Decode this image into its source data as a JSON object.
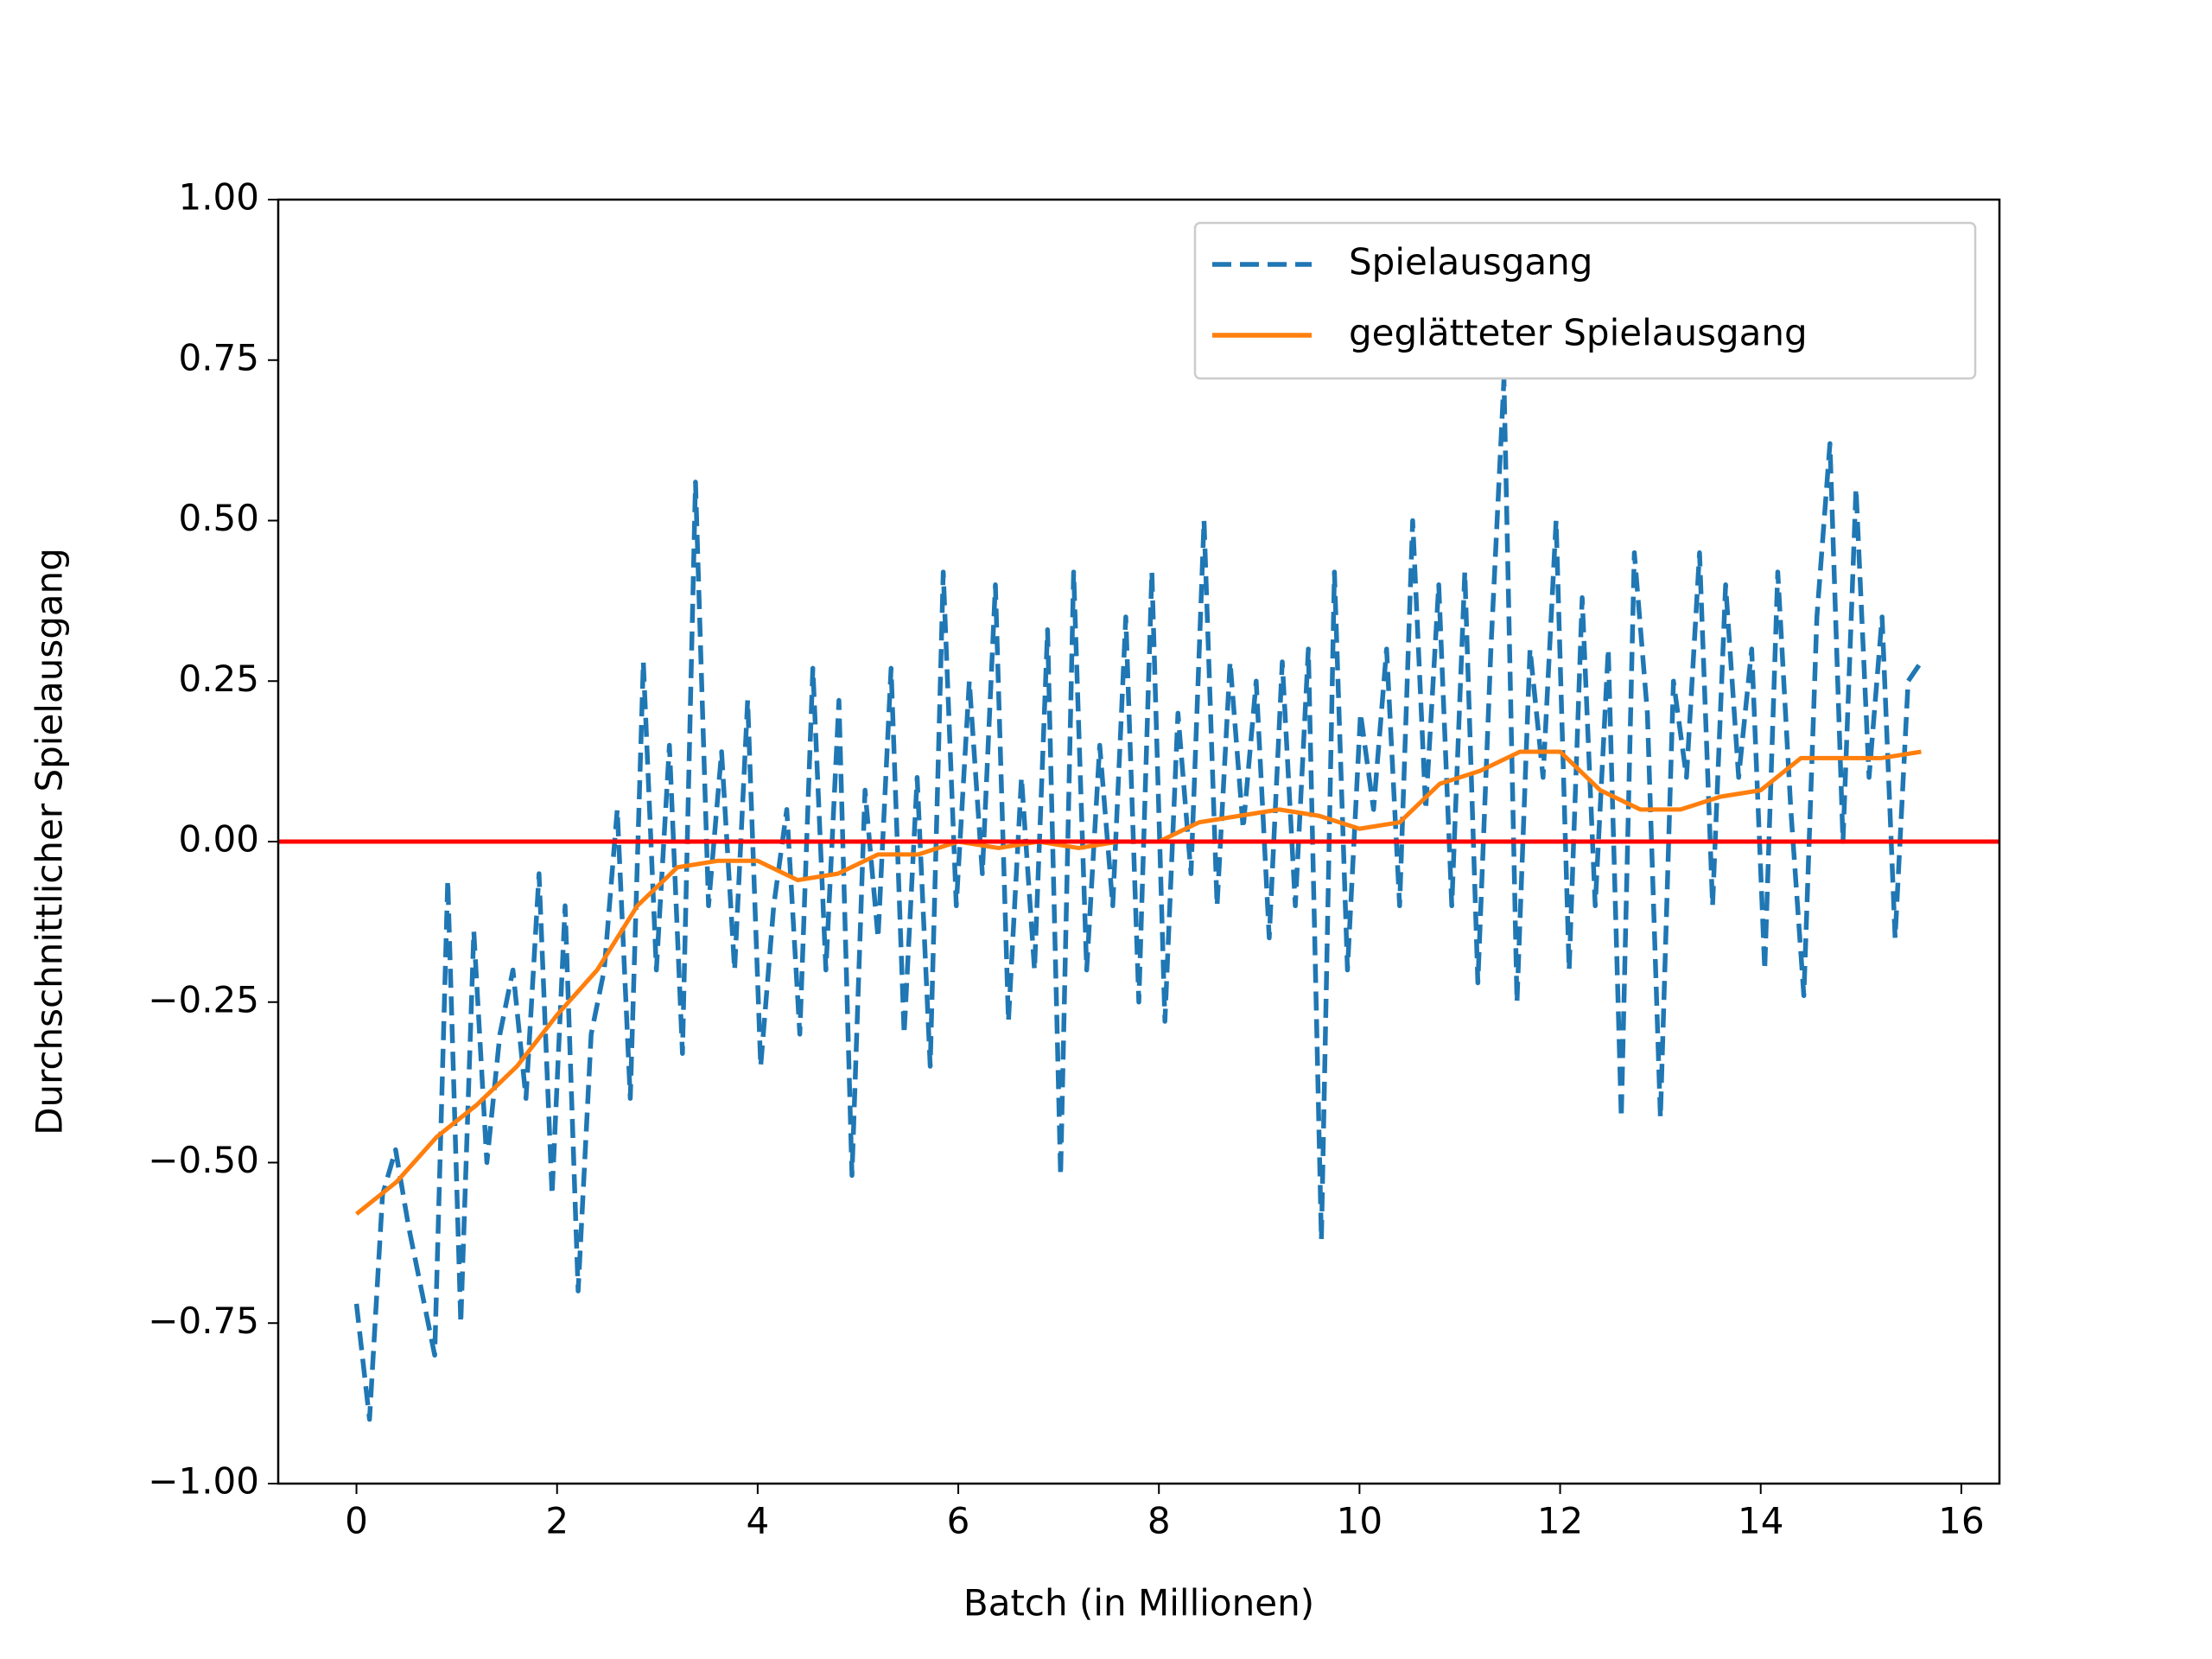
{
  "chart_data": {
    "type": "line",
    "xlabel": "Batch (in Millionen)",
    "ylabel": "Durchschnittlicher Spielausgang",
    "xlim": [
      -0.78,
      16.38
    ],
    "ylim": [
      -1,
      1
    ],
    "xticks": [
      0,
      2,
      4,
      6,
      8,
      10,
      12,
      14,
      16
    ],
    "yticks": [
      {
        "value": 1,
        "label": "1.00"
      },
      {
        "value": 0.75,
        "label": "0.75"
      },
      {
        "value": 0.5,
        "label": "0.50"
      },
      {
        "value": 0.25,
        "label": "0.25"
      },
      {
        "value": 0,
        "label": "0.00"
      },
      {
        "value": -0.25,
        "label": "−0.25"
      },
      {
        "value": -0.5,
        "label": "−0.50"
      },
      {
        "value": -0.75,
        "label": "−0.75"
      },
      {
        "value": -1,
        "label": "−1.00"
      }
    ],
    "hline": {
      "value": 0,
      "color": "#ff0000"
    },
    "legend": "upper right",
    "series": [
      {
        "name": "Spielausgang",
        "color": "#1f77b4",
        "dashed": true,
        "x": [
          0,
          0.13,
          0.26,
          0.39,
          0.52,
          0.65,
          0.78,
          0.91,
          1.04,
          1.17,
          1.3,
          1.43,
          1.56,
          1.69,
          1.82,
          1.95,
          2.08,
          2.21,
          2.34,
          2.47,
          2.6,
          2.73,
          2.86,
          2.99,
          3.12,
          3.25,
          3.38,
          3.51,
          3.64,
          3.77,
          3.9,
          4.03,
          4.16,
          4.29,
          4.42,
          4.55,
          4.68,
          4.81,
          4.94,
          5.07,
          5.2,
          5.33,
          5.46,
          5.59,
          5.72,
          5.85,
          5.98,
          6.11,
          6.24,
          6.37,
          6.5,
          6.63,
          6.76,
          6.89,
          7.02,
          7.15,
          7.28,
          7.41,
          7.54,
          7.67,
          7.8,
          7.93,
          8.06,
          8.19,
          8.32,
          8.45,
          8.58,
          8.71,
          8.84,
          8.97,
          9.1,
          9.23,
          9.36,
          9.49,
          9.62,
          9.75,
          9.88,
          10.01,
          10.14,
          10.27,
          10.4,
          10.53,
          10.66,
          10.79,
          10.92,
          11.05,
          11.18,
          11.31,
          11.44,
          11.57,
          11.7,
          11.83,
          11.96,
          12.09,
          12.22,
          12.35,
          12.48,
          12.61,
          12.74,
          12.87,
          13,
          13.13,
          13.26,
          13.39,
          13.52,
          13.65,
          13.78,
          13.91,
          14.04,
          14.17,
          14.3,
          14.43,
          14.56,
          14.69,
          14.82,
          14.95,
          15.08,
          15.21,
          15.34,
          15.47,
          15.6
        ],
        "values": [
          -0.72,
          -0.9,
          -0.55,
          -0.48,
          -0.6,
          -0.7,
          -0.8,
          -0.06,
          -0.75,
          -0.14,
          -0.5,
          -0.3,
          -0.2,
          -0.4,
          -0.05,
          -0.55,
          -0.1,
          -0.7,
          -0.3,
          -0.2,
          0.05,
          -0.4,
          0.28,
          -0.2,
          0.15,
          -0.33,
          0.56,
          -0.1,
          0.14,
          -0.2,
          0.22,
          -0.35,
          -0.1,
          0.05,
          -0.3,
          0.27,
          -0.2,
          0.22,
          -0.52,
          0.08,
          -0.15,
          0.27,
          -0.3,
          0.1,
          -0.35,
          0.42,
          -0.1,
          0.25,
          -0.05,
          0.4,
          -0.28,
          0.1,
          -0.2,
          0.33,
          -0.52,
          0.42,
          -0.2,
          0.15,
          -0.1,
          0.35,
          -0.25,
          0.42,
          -0.28,
          0.2,
          -0.05,
          0.5,
          -0.1,
          0.28,
          0.02,
          0.25,
          -0.15,
          0.28,
          -0.1,
          0.3,
          -0.62,
          0.42,
          -0.2,
          0.2,
          0.05,
          0.3,
          -0.1,
          0.5,
          0.05,
          0.4,
          -0.1,
          0.42,
          -0.22,
          0.3,
          0.72,
          -0.25,
          0.3,
          0.1,
          0.5,
          -0.2,
          0.38,
          -0.1,
          0.3,
          -0.43,
          0.45,
          0.2,
          -0.43,
          0.25,
          0.1,
          0.45,
          -0.1,
          0.4,
          0.1,
          0.3,
          -0.2,
          0.42,
          0.05,
          -0.24,
          0.35,
          0.62,
          0.0,
          0.55,
          0.1,
          0.35,
          -0.15,
          0.25,
          0.28
        ]
      },
      {
        "name": "geglätteter Spielausgang",
        "color": "#ff7f0e",
        "dashed": false,
        "x": [
          0,
          0.4,
          0.8,
          1.2,
          1.6,
          2,
          2.4,
          2.8,
          3.2,
          3.6,
          4,
          4.4,
          4.8,
          5.2,
          5.6,
          6,
          6.4,
          6.8,
          7.2,
          7.6,
          8,
          8.4,
          8.8,
          9.2,
          9.6,
          10,
          10.4,
          10.8,
          11.2,
          11.6,
          12,
          12.4,
          12.8,
          13.2,
          13.6,
          14,
          14.4,
          14.8,
          15.2,
          15.6
        ],
        "values": [
          -0.58,
          -0.53,
          -0.46,
          -0.41,
          -0.35,
          -0.27,
          -0.2,
          -0.1,
          -0.04,
          -0.03,
          -0.03,
          -0.06,
          -0.05,
          -0.02,
          -0.02,
          0.0,
          -0.01,
          0.0,
          -0.01,
          0.0,
          0.0,
          0.03,
          0.04,
          0.05,
          0.04,
          0.02,
          0.03,
          0.09,
          0.11,
          0.14,
          0.14,
          0.08,
          0.05,
          0.05,
          0.07,
          0.08,
          0.13,
          0.13,
          0.13,
          0.14
        ]
      }
    ]
  }
}
